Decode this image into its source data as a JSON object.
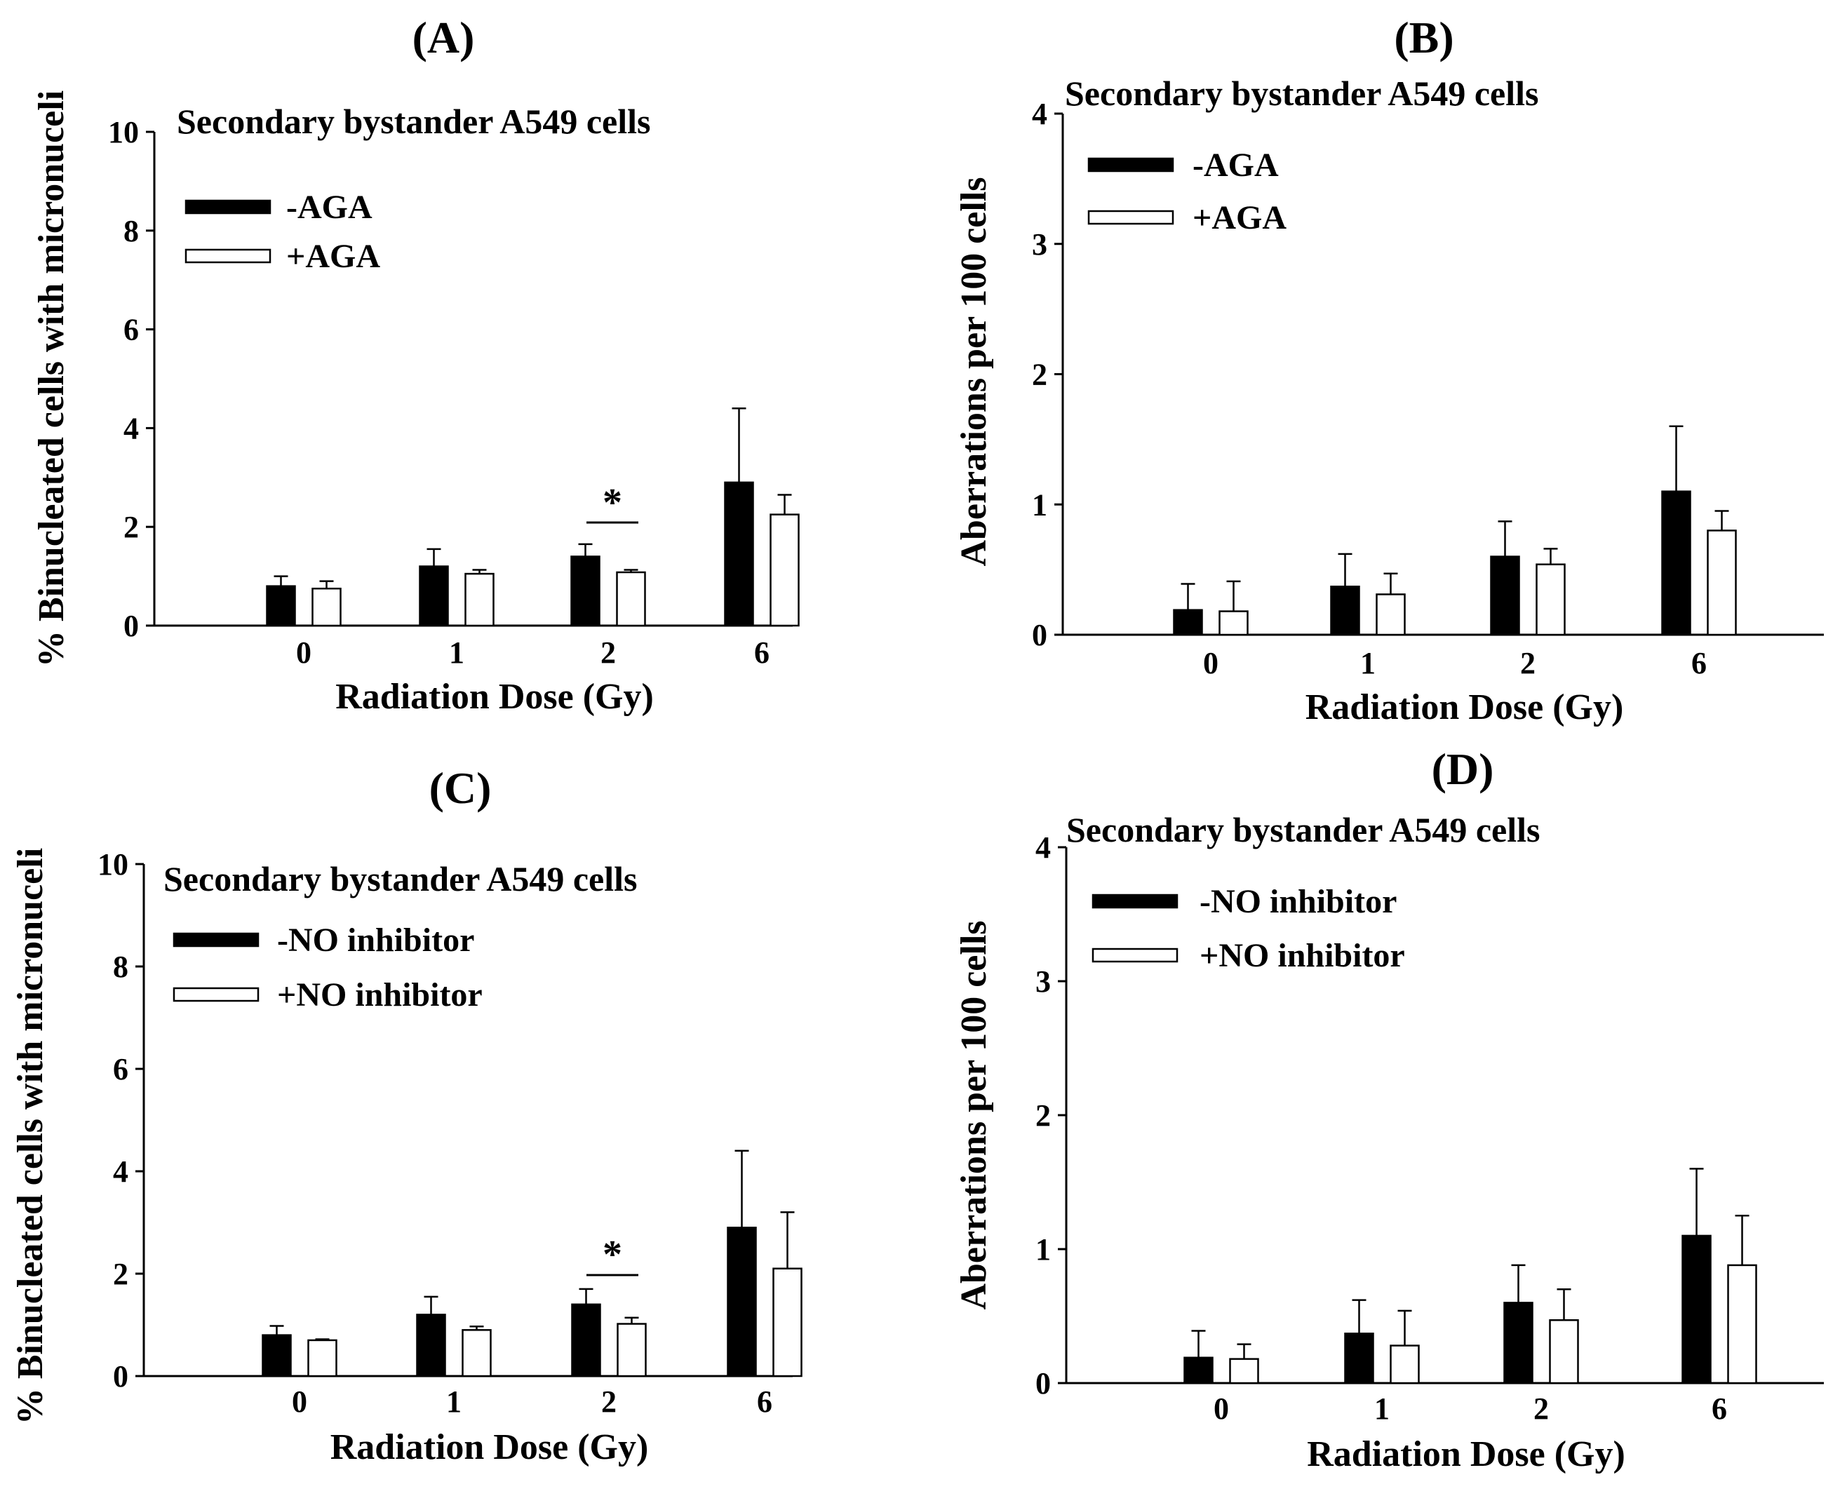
{
  "chart_data": [
    {
      "type": "bar",
      "panel_label": "(A)",
      "title": "Secondary bystander A549 cells",
      "xlabel": "Radiation Dose (Gy)",
      "ylabel": "% Binucleated cells with micronuceli",
      "categories": [
        "0",
        "1",
        "2",
        "6"
      ],
      "ylim": [
        0,
        10
      ],
      "yticks": [
        "0",
        "2",
        "4",
        "6",
        "8",
        "10"
      ],
      "legend_position": "top-left",
      "series": [
        {
          "name": "-AGA",
          "color": "#000000",
          "values": [
            0.8,
            1.2,
            1.4,
            2.9
          ],
          "errors": [
            0.2,
            0.35,
            0.25,
            1.5
          ]
        },
        {
          "name": "+AGA",
          "color": "#ffffff",
          "values": [
            0.75,
            1.05,
            1.08,
            2.25
          ],
          "errors": [
            0.15,
            0.08,
            0.05,
            0.4
          ]
        }
      ],
      "annotations": [
        {
          "text": "*",
          "category": "2"
        }
      ]
    },
    {
      "type": "bar",
      "panel_label": "(B)",
      "title": "Secondary bystander A549 cells",
      "xlabel": "Radiation Dose (Gy)",
      "ylabel": "Aberrations per 100 cells",
      "categories": [
        "0",
        "1",
        "2",
        "6"
      ],
      "ylim": [
        0,
        4
      ],
      "yticks": [
        "0",
        "1",
        "2",
        "3",
        "4"
      ],
      "legend_position": "top-left",
      "series": [
        {
          "name": "-AGA",
          "color": "#000000",
          "values": [
            0.19,
            0.37,
            0.6,
            1.1
          ],
          "errors": [
            0.2,
            0.25,
            0.27,
            0.5
          ]
        },
        {
          "name": "+AGA",
          "color": "#ffffff",
          "values": [
            0.18,
            0.31,
            0.54,
            0.8
          ],
          "errors": [
            0.23,
            0.16,
            0.12,
            0.15
          ]
        }
      ],
      "annotations": []
    },
    {
      "type": "bar",
      "panel_label": "(C)",
      "title": "Secondary bystander A549 cells",
      "xlabel": "Radiation Dose (Gy)",
      "ylabel": "% Binucleated cells with micronuceli",
      "categories": [
        "0",
        "1",
        "2",
        "6"
      ],
      "ylim": [
        0,
        10
      ],
      "yticks": [
        "0",
        "2",
        "4",
        "6",
        "8",
        "10"
      ],
      "legend_position": "top-left",
      "series": [
        {
          "name": "-NO inhibitor",
          "color": "#000000",
          "values": [
            0.8,
            1.2,
            1.4,
            2.9
          ],
          "errors": [
            0.18,
            0.35,
            0.3,
            1.5
          ]
        },
        {
          "name": "+NO inhibitor",
          "color": "#ffffff",
          "values": [
            0.7,
            0.9,
            1.02,
            2.1
          ],
          "errors": [
            0.02,
            0.07,
            0.12,
            1.1
          ]
        }
      ],
      "annotations": [
        {
          "text": "*",
          "category": "2"
        }
      ]
    },
    {
      "type": "bar",
      "panel_label": "(D)",
      "title": "Secondary bystander A549 cells",
      "xlabel": "Radiation Dose (Gy)",
      "ylabel": "Aberrations per 100 cells",
      "categories": [
        "0",
        "1",
        "2",
        "6"
      ],
      "ylim": [
        0,
        4
      ],
      "yticks": [
        "0",
        "1",
        "2",
        "3",
        "4"
      ],
      "legend_position": "top-left",
      "series": [
        {
          "name": "-NO inhibitor",
          "color": "#000000",
          "values": [
            0.19,
            0.37,
            0.6,
            1.1
          ],
          "errors": [
            0.2,
            0.25,
            0.28,
            0.5
          ]
        },
        {
          "name": "+NO inhibitor",
          "color": "#ffffff",
          "values": [
            0.18,
            0.28,
            0.47,
            0.88
          ],
          "errors": [
            0.11,
            0.26,
            0.23,
            0.37
          ]
        }
      ],
      "annotations": []
    }
  ]
}
